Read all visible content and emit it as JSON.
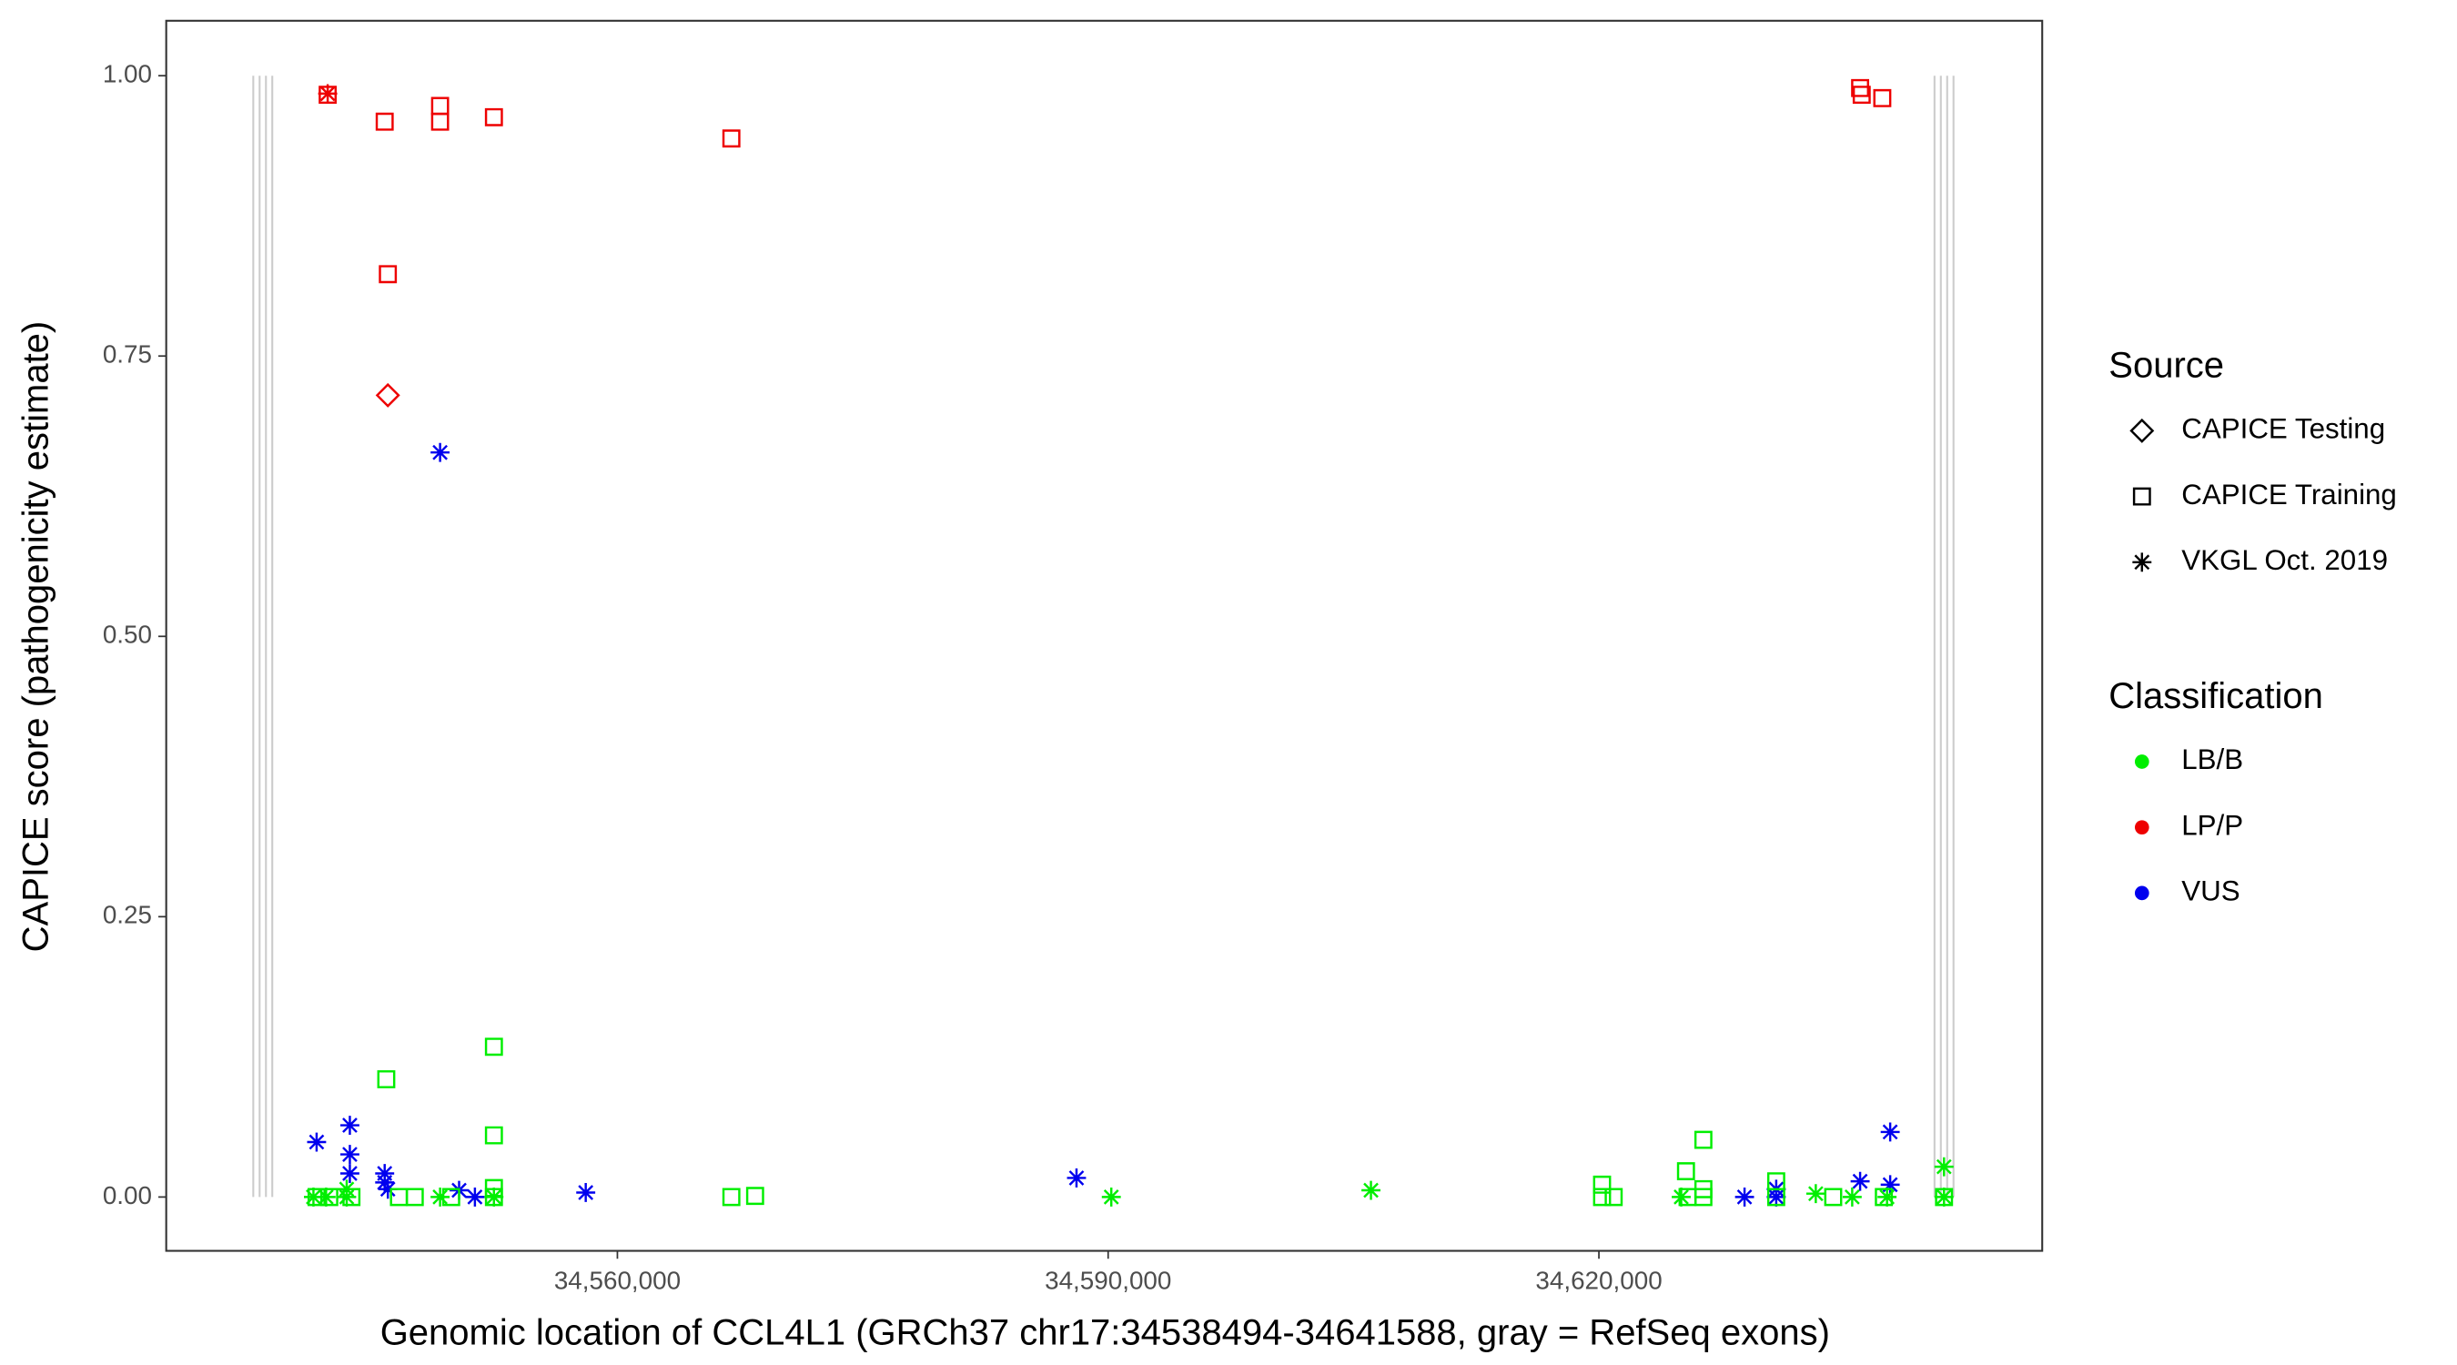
{
  "chart_data": {
    "type": "scatter",
    "x_label": "Genomic location of CCL4L1 (GRCh37 chr17:34538494-34641588, gray = RefSeq exons)",
    "y_label": "CAPICE score (pathogenicity estimate)",
    "xlim": [
      34532420,
      34647100
    ],
    "ylim": [
      -0.048,
      1.049
    ],
    "xticks": [
      {
        "value": 34560000,
        "label": "34,560,000"
      },
      {
        "value": 34590000,
        "label": "34,590,000"
      },
      {
        "value": 34620000,
        "label": "34,620,000"
      }
    ],
    "yticks": [
      {
        "value": 0,
        "label": "0.00"
      },
      {
        "value": 0.25,
        "label": "0.25"
      },
      {
        "value": 0.5,
        "label": "0.50"
      },
      {
        "value": 0.75,
        "label": "0.75"
      },
      {
        "value": 1,
        "label": "1.00"
      }
    ],
    "exons": [
      34537742,
      34538129,
      34538516,
      34538903,
      34640516,
      34640903,
      34641290,
      34641677
    ],
    "exon_color": "#cccccc",
    "shape_legend": {
      "title": "Source",
      "items": [
        {
          "label": "CAPICE Testing",
          "shape": "diamond"
        },
        {
          "label": "CAPICE Training",
          "shape": "square"
        },
        {
          "label": "VKGL Oct. 2019",
          "shape": "star"
        }
      ]
    },
    "color_legend": {
      "title": "Classification",
      "items": [
        {
          "label": "LB/B",
          "color": "#00ee00"
        },
        {
          "label": "LP/P",
          "color": "#ee0000"
        },
        {
          "label": "VUS",
          "color": "#0000ee"
        }
      ]
    },
    "series": [
      {
        "source": 2,
        "class": 1,
        "x": [
          34542290
        ],
        "y": [
          0.984
        ]
      },
      {
        "source": 1,
        "class": 1,
        "x": [
          34542290,
          34545774,
          34545968,
          34549161,
          34549161,
          34552452,
          34566968,
          34635968,
          34636065,
          34637323
        ],
        "y": [
          0.983,
          0.959,
          0.823,
          0.973,
          0.959,
          0.963,
          0.944,
          0.989,
          0.983,
          0.98
        ]
      },
      {
        "source": 0,
        "class": 1,
        "x": [
          34545968
        ],
        "y": [
          0.715
        ]
      },
      {
        "source": 2,
        "class": 2,
        "x": [
          34541613,
          34543645,
          34543645,
          34543645,
          34545774,
          34545774,
          34545968,
          34549161,
          34550323,
          34551290,
          34558065,
          34588065,
          34628903,
          34630839,
          34630839,
          34635968,
          34637806,
          34637806
        ],
        "y": [
          0.049,
          0.064,
          0.038,
          0.021,
          0.021,
          0.013,
          0.007,
          0.664,
          0.006,
          0,
          0.004,
          0.017,
          0,
          0.007,
          0,
          0.014,
          0.058,
          0.011
        ]
      },
      {
        "source": 2,
        "class": 0,
        "x": [
          34541419,
          34542194,
          34543452,
          34543452,
          34549161,
          34552452,
          34590193,
          34606065,
          34625032,
          34633258,
          34635484,
          34637613,
          34641097,
          34641097
        ],
        "y": [
          0,
          0,
          0,
          0.007,
          0,
          0,
          0,
          0.006,
          0,
          0.003,
          0,
          0,
          0.027,
          0
        ]
      },
      {
        "source": 1,
        "class": 0,
        "x": [
          34541613,
          34542387,
          34543742,
          34545871,
          34546645,
          34547613,
          34549839,
          34552452,
          34552452,
          34552452,
          34552452,
          34566968,
          34568419,
          34620903,
          34620193,
          34620193,
          34625323,
          34625420,
          34626387,
          34626387,
          34626387,
          34630839,
          34630839,
          34634323,
          34637419,
          34641097
        ],
        "y": [
          0,
          0,
          0,
          0.105,
          0,
          0,
          0,
          0.134,
          0.055,
          0.008,
          0,
          0,
          0.001,
          0,
          0.011,
          0,
          0.023,
          0,
          0.051,
          0.007,
          0,
          0.014,
          0,
          0,
          0,
          0
        ]
      }
    ]
  }
}
